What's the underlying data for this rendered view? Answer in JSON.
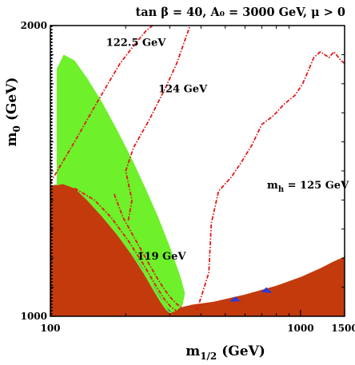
{
  "chart_data": {
    "type": "area",
    "title": "tan β = 40, A₀ = 3000 GeV,  μ > 0",
    "xlabel": "m",
    "xlabel_sub": "1/2",
    "xlabel_unit": " (GeV)",
    "ylabel": "m",
    "ylabel_sub": "0",
    "ylabel_unit": " (GeV)",
    "xlim": [
      100,
      1500
    ],
    "ylim": [
      1000,
      2000
    ],
    "xticks": [
      {
        "value": 100,
        "label": "100"
      },
      {
        "value": 1000,
        "label": "1000"
      },
      {
        "value": 1500,
        "label": "1500"
      }
    ],
    "yticks": [
      {
        "value": 1000,
        "label": "1000"
      },
      {
        "value": 2000,
        "label": "2000"
      }
    ],
    "colors": {
      "excluded": "#c33a0d",
      "relic": "#6ef02a",
      "bsg": "#2d3ad6",
      "higgs": "#e21818"
    },
    "regions": [
      {
        "name": "charged-lsp-region",
        "color_key": "excluded",
        "points": [
          [
            100,
            1450
          ],
          [
            112,
            1455
          ],
          [
            125,
            1440
          ],
          [
            140,
            1400
          ],
          [
            160,
            1345
          ],
          [
            185,
            1280
          ],
          [
            210,
            1215
          ],
          [
            235,
            1150
          ],
          [
            258,
            1090
          ],
          [
            275,
            1050
          ],
          [
            290,
            1022
          ],
          [
            300,
            1012
          ],
          [
            330,
            1030
          ],
          [
            370,
            1040
          ],
          [
            450,
            1050
          ],
          [
            600,
            1075
          ],
          [
            800,
            1105
          ],
          [
            1000,
            1135
          ],
          [
            1200,
            1165
          ],
          [
            1350,
            1188
          ],
          [
            1500,
            1205
          ],
          [
            1500,
            1000
          ],
          [
            100,
            1000
          ]
        ]
      },
      {
        "name": "relic-density-band",
        "color_key": "relic",
        "points": [
          [
            106,
            1850
          ],
          [
            113,
            1900
          ],
          [
            125,
            1880
          ],
          [
            140,
            1820
          ],
          [
            160,
            1740
          ],
          [
            185,
            1640
          ],
          [
            212,
            1540
          ],
          [
            240,
            1440
          ],
          [
            270,
            1340
          ],
          [
            300,
            1240
          ],
          [
            330,
            1140
          ],
          [
            345,
            1080
          ],
          [
            338,
            1040
          ],
          [
            320,
            1020
          ],
          [
            300,
            1010
          ],
          [
            290,
            1022
          ],
          [
            275,
            1050
          ],
          [
            258,
            1090
          ],
          [
            235,
            1150
          ],
          [
            210,
            1215
          ],
          [
            185,
            1280
          ],
          [
            160,
            1345
          ],
          [
            140,
            1400
          ],
          [
            125,
            1440
          ],
          [
            112,
            1455
          ],
          [
            106,
            1450
          ]
        ]
      },
      {
        "name": "bsg-sliver",
        "color_key": "bsg",
        "points": [
          [
            210,
            1222
          ],
          [
            240,
            1150
          ],
          [
            262,
            1098
          ],
          [
            282,
            1050
          ],
          [
            298,
            1018
          ],
          [
            305,
            1015
          ],
          [
            292,
            1030
          ],
          [
            276,
            1062
          ],
          [
            256,
            1112
          ],
          [
            232,
            1170
          ],
          [
            210,
            1222
          ]
        ]
      },
      {
        "name": "bsg-blob-1",
        "color_key": "bsg",
        "points": [
          [
            520,
            1050
          ],
          [
            548,
            1068
          ],
          [
            575,
            1052
          ]
        ]
      },
      {
        "name": "bsg-blob-2",
        "color_key": "bsg",
        "points": [
          [
            695,
            1083
          ],
          [
            730,
            1100
          ],
          [
            770,
            1080
          ]
        ]
      }
    ],
    "contours": [
      {
        "label": "122.5 GeV",
        "points": [
          [
            100,
            1460
          ],
          [
            125,
            1600
          ],
          [
            150,
            1720
          ],
          [
            170,
            1800
          ],
          [
            190,
            1870
          ],
          [
            215,
            1930
          ],
          [
            240,
            1980
          ],
          [
            256,
            2000
          ]
        ]
      },
      {
        "label": "124 GeV",
        "points": [
          [
            205,
            1330
          ],
          [
            212,
            1400
          ],
          [
            200,
            1500
          ],
          [
            215,
            1580
          ],
          [
            250,
            1680
          ],
          [
            290,
            1790
          ],
          [
            320,
            1870
          ],
          [
            345,
            1950
          ],
          [
            362,
            2000
          ]
        ]
      },
      {
        "label": "125 GeV",
        "points": [
          [
            385,
            1020
          ],
          [
            430,
            1150
          ],
          [
            440,
            1320
          ],
          [
            470,
            1430
          ],
          [
            530,
            1480
          ],
          [
            580,
            1530
          ],
          [
            640,
            1590
          ],
          [
            700,
            1660
          ],
          [
            780,
            1690
          ],
          [
            860,
            1730
          ],
          [
            950,
            1760
          ],
          [
            1020,
            1800
          ],
          [
            1080,
            1850
          ],
          [
            1130,
            1890
          ],
          [
            1200,
            1910
          ],
          [
            1300,
            1890
          ],
          [
            1360,
            1910
          ],
          [
            1450,
            1880
          ],
          [
            1500,
            1870
          ]
        ]
      },
      {
        "label": "119 GeV",
        "points": [
          [
            125,
            1440
          ],
          [
            150,
            1400
          ],
          [
            175,
            1340
          ],
          [
            205,
            1260
          ],
          [
            235,
            1180
          ],
          [
            262,
            1110
          ],
          [
            285,
            1060
          ],
          [
            305,
            1030
          ],
          [
            318,
            1020
          ]
        ]
      },
      {
        "label": "",
        "points": [
          [
            180,
            1420
          ],
          [
            195,
            1340
          ],
          [
            220,
            1260
          ],
          [
            248,
            1180
          ],
          [
            272,
            1120
          ],
          [
            298,
            1070
          ],
          [
            322,
            1040
          ],
          [
            338,
            1030
          ]
        ]
      }
    ],
    "contour_labels": [
      {
        "text": "122.5 GeV",
        "x": 167,
        "y": 1930
      },
      {
        "text": "124 GeV",
        "x": 270,
        "y": 1770
      },
      {
        "text": "m",
        "sub": "h",
        "suffix": "  = 125 GeV",
        "x": 735,
        "y": 1440
      },
      {
        "text": "119 GeV",
        "x": 222,
        "y": 1195
      }
    ],
    "grid": false,
    "legend": "none"
  }
}
